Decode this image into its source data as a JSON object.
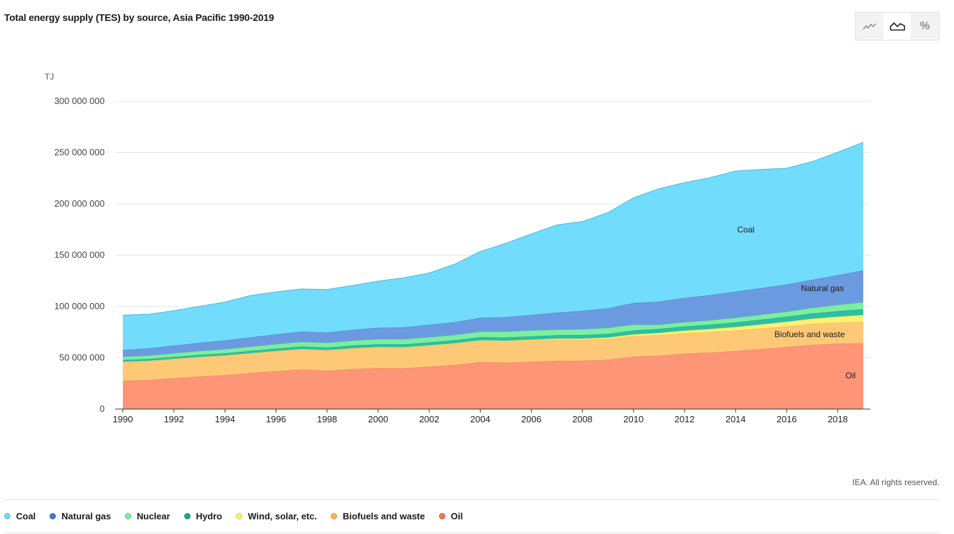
{
  "header": {
    "title": "Total energy supply (TES) by source, Asia Pacific 1990-2019"
  },
  "view_toggle": {
    "buttons": [
      {
        "name": "line-view-button",
        "icon": "line-chart-icon",
        "active": false
      },
      {
        "name": "area-view-button",
        "icon": "area-chart-icon",
        "active": true
      },
      {
        "name": "percent-view-button",
        "icon": "percent-icon",
        "label": "%",
        "active": false
      }
    ]
  },
  "footer": {
    "credit": "IEA. All rights reserved."
  },
  "chart_data": {
    "type": "area",
    "stacked": true,
    "unit_label": "TJ",
    "x": [
      1990,
      1991,
      1992,
      1993,
      1994,
      1995,
      1996,
      1997,
      1998,
      1999,
      2000,
      2001,
      2002,
      2003,
      2004,
      2005,
      2006,
      2007,
      2008,
      2009,
      2010,
      2011,
      2012,
      2013,
      2014,
      2015,
      2016,
      2017,
      2018,
      2019
    ],
    "xticks": [
      1990,
      1992,
      1994,
      1996,
      1998,
      2000,
      2002,
      2004,
      2006,
      2008,
      2010,
      2012,
      2014,
      2016,
      2018
    ],
    "ylim": [
      0,
      300000000
    ],
    "yticks": [
      0,
      50000000,
      100000000,
      150000000,
      200000000,
      250000000,
      300000000
    ],
    "ytick_labels": [
      "0",
      "50 000 000",
      "100 000 000",
      "150 000 000",
      "200 000 000",
      "250 000 000",
      "300 000 000"
    ],
    "grid": true,
    "series": [
      {
        "name": "Oil",
        "color": "#fe9576",
        "stroke": "#e57f62",
        "values": [
          27500000,
          28300000,
          30000000,
          31700000,
          33000000,
          35000000,
          36800000,
          38500000,
          37200000,
          39000000,
          40000000,
          39700000,
          41300000,
          43000000,
          45700000,
          45200000,
          46000000,
          47000000,
          47100000,
          48000000,
          51000000,
          52000000,
          54000000,
          55000000,
          56500000,
          58500000,
          60500000,
          62500000,
          63700000,
          64200000
        ]
      },
      {
        "name": "Biofuels and waste",
        "color": "#fdc977",
        "stroke": "#e3ae5c",
        "values": [
          18500000,
          18500000,
          18700000,
          18900000,
          19000000,
          19200000,
          19500000,
          19700000,
          19800000,
          19900000,
          20000000,
          20000000,
          20100000,
          20300000,
          20400000,
          20400000,
          20500000,
          20500000,
          20300000,
          20200000,
          20000000,
          20000000,
          19900000,
          20000000,
          20000000,
          20000000,
          20000000,
          20300000,
          20400000,
          20800000
        ]
      },
      {
        "name": "Wind, solar, etc.",
        "color": "#fff06f",
        "stroke": "#e5d65a",
        "values": [
          200000,
          200000,
          250000,
          250000,
          300000,
          300000,
          350000,
          400000,
          450000,
          500000,
          550000,
          600000,
          700000,
          800000,
          900000,
          1000000,
          1100000,
          1200000,
          1300000,
          1500000,
          1800000,
          2200000,
          2600000,
          3000000,
          3500000,
          4000000,
          4600000,
          5300000,
          6000000,
          6800000
        ]
      },
      {
        "name": "Hydro",
        "color": "#2cbfa3",
        "stroke": "#1d9c84",
        "values": [
          1600000,
          1700000,
          1800000,
          1900000,
          2000000,
          2100000,
          2200000,
          2300000,
          2400000,
          2500000,
          2600000,
          2700000,
          2800000,
          2900000,
          3000000,
          3100000,
          3200000,
          3300000,
          3400000,
          3500000,
          3700000,
          3800000,
          4000000,
          4200000,
          4400000,
          4600000,
          4800000,
          5000000,
          5200000,
          5400000
        ]
      },
      {
        "name": "Nuclear",
        "color": "#7beea0",
        "stroke": "#5fcf83",
        "values": [
          3200000,
          3400000,
          3600000,
          3800000,
          4000000,
          4200000,
          4400000,
          4600000,
          4700000,
          4800000,
          5000000,
          5100000,
          5200000,
          5200000,
          5500000,
          5800000,
          5900000,
          5400000,
          5700000,
          5900000,
          5800000,
          4200000,
          4200000,
          4300000,
          4600000,
          4800000,
          5000000,
          5500000,
          6200000,
          6900000
        ]
      },
      {
        "name": "Natural gas",
        "color": "#6c9ae0",
        "stroke": "#4d7bc4",
        "values": [
          6500000,
          7000000,
          7500000,
          8000000,
          8500000,
          9000000,
          9500000,
          10000000,
          10000000,
          10500000,
          11000000,
          11500000,
          12000000,
          12500000,
          13500000,
          14000000,
          15000000,
          16500000,
          18000000,
          19000000,
          21000000,
          22500000,
          23500000,
          24500000,
          25500000,
          26000000,
          26500000,
          27300000,
          29000000,
          31000000
        ]
      },
      {
        "name": "Coal",
        "color": "#72dcfc",
        "stroke": "#4fb6d8",
        "values": [
          34000000,
          33300000,
          34000000,
          35500000,
          37500000,
          40800000,
          41500000,
          41500000,
          42000000,
          43200000,
          45500000,
          48300000,
          50500000,
          56500000,
          64500000,
          72000000,
          79000000,
          85500000,
          87000000,
          93400000,
          102500000,
          110000000,
          112500000,
          114500000,
          117500000,
          115600000,
          113300000,
          115200000,
          119800000,
          124900000
        ]
      }
    ],
    "labels": [
      {
        "series": "Coal",
        "text": "Coal",
        "x": 2014.4,
        "y": 172000000
      },
      {
        "series": "Natural gas",
        "text": "Natural gas",
        "x": 2017.4,
        "y": 115000000
      },
      {
        "series": "Biofuels and waste",
        "text": "Biofuels and waste",
        "x": 2016.9,
        "y": 70000000
      },
      {
        "series": "Oil",
        "text": "Oil",
        "x": 2018.5,
        "y": 30000000
      }
    ],
    "legend": {
      "position": "bottom",
      "items": [
        {
          "name": "Coal",
          "color": "#72dcfc",
          "border": "#4fb6d8"
        },
        {
          "name": "Natural gas",
          "color": "#4a7ac9",
          "border": "#3a64ab"
        },
        {
          "name": "Nuclear",
          "color": "#7beea0",
          "border": "#4fcf7a"
        },
        {
          "name": "Hydro",
          "color": "#1ca88e",
          "border": "#168a74"
        },
        {
          "name": "Wind, solar, etc.",
          "color": "#fff06f",
          "border": "#e0cc3a"
        },
        {
          "name": "Biofuels and waste",
          "color": "#fdb14e",
          "border": "#e0962f"
        },
        {
          "name": "Oil",
          "color": "#f87752",
          "border": "#da5c38"
        }
      ]
    }
  }
}
